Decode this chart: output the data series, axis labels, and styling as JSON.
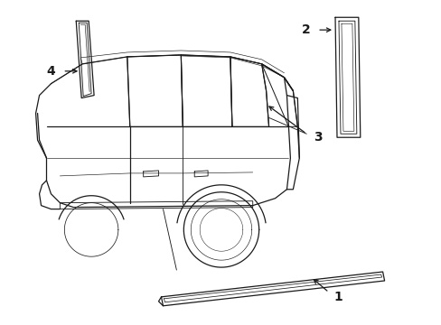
{
  "background_color": "#ffffff",
  "line_color": "#1a1a1a",
  "line_width": 0.9,
  "fig_width": 4.89,
  "fig_height": 3.6,
  "dpi": 100
}
